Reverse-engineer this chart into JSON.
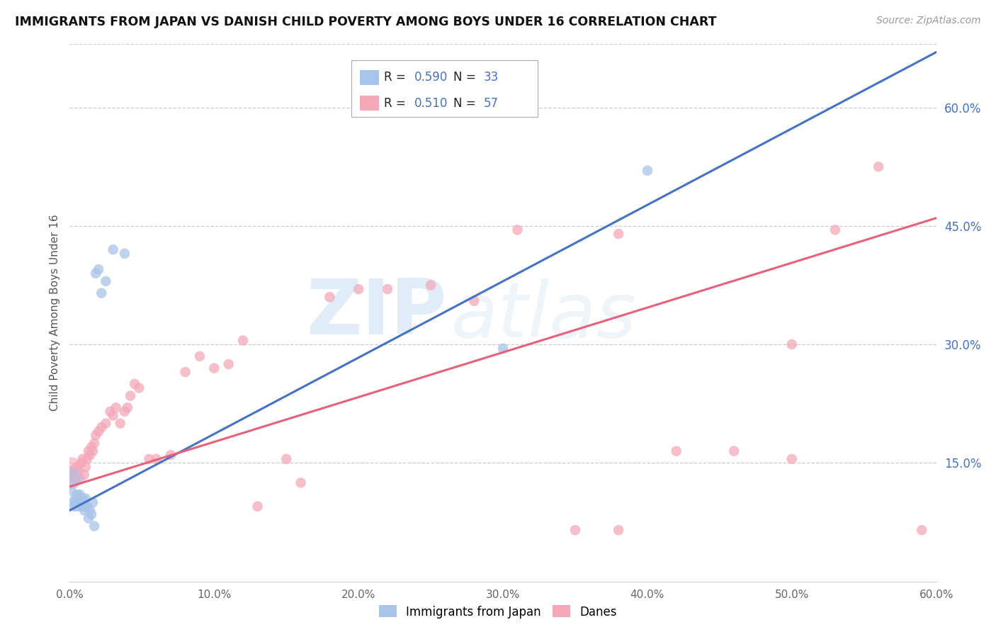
{
  "title": "IMMIGRANTS FROM JAPAN VS DANISH CHILD POVERTY AMONG BOYS UNDER 16 CORRELATION CHART",
  "source": "Source: ZipAtlas.com",
  "ylabel": "Child Poverty Among Boys Under 16",
  "xlim": [
    0.0,
    0.6
  ],
  "ylim": [
    0.0,
    0.68
  ],
  "xticks": [
    0.0,
    0.1,
    0.2,
    0.3,
    0.4,
    0.5,
    0.6
  ],
  "xticklabels": [
    "0.0%",
    "10.0%",
    "20.0%",
    "30.0%",
    "40.0%",
    "50.0%",
    "60.0%"
  ],
  "yticks_right": [
    0.15,
    0.3,
    0.45,
    0.6
  ],
  "yticklabels_right": [
    "15.0%",
    "30.0%",
    "45.0%",
    "60.0%"
  ],
  "color_japan": "#a8c4e8",
  "color_danes": "#f4a8b8",
  "color_japan_line": "#4472c4",
  "color_danes_line": "#e8607a",
  "watermark_zip": "ZIP",
  "watermark_atlas": "atlas",
  "japan_line_x0": 0.0,
  "japan_line_y0": 0.09,
  "japan_line_x1": 0.6,
  "japan_line_y1": 0.67,
  "danes_line_x0": 0.0,
  "danes_line_y0": 0.12,
  "danes_line_x1": 0.6,
  "danes_line_y1": 0.46,
  "scatter_japan_x": [
    0.001,
    0.002,
    0.003,
    0.004,
    0.004,
    0.005,
    0.005,
    0.006,
    0.006,
    0.007,
    0.007,
    0.008,
    0.008,
    0.009,
    0.009,
    0.01,
    0.01,
    0.011,
    0.011,
    0.012,
    0.013,
    0.014,
    0.015,
    0.016,
    0.017,
    0.018,
    0.02,
    0.022,
    0.025,
    0.03,
    0.038,
    0.3,
    0.4
  ],
  "scatter_japan_y": [
    0.115,
    0.1,
    0.095,
    0.1,
    0.105,
    0.11,
    0.095,
    0.105,
    0.1,
    0.11,
    0.105,
    0.095,
    0.1,
    0.105,
    0.095,
    0.1,
    0.09,
    0.105,
    0.095,
    0.095,
    0.08,
    0.09,
    0.085,
    0.1,
    0.07,
    0.39,
    0.395,
    0.365,
    0.38,
    0.42,
    0.415,
    0.295,
    0.52
  ],
  "scatter_japan_large_x": [
    0.001
  ],
  "scatter_japan_large_y": [
    0.13
  ],
  "scatter_danes_x": [
    0.001,
    0.002,
    0.003,
    0.004,
    0.005,
    0.006,
    0.007,
    0.008,
    0.009,
    0.01,
    0.011,
    0.012,
    0.013,
    0.014,
    0.015,
    0.016,
    0.017,
    0.018,
    0.02,
    0.022,
    0.025,
    0.028,
    0.03,
    0.032,
    0.035,
    0.038,
    0.04,
    0.042,
    0.045,
    0.048,
    0.055,
    0.06,
    0.07,
    0.08,
    0.09,
    0.1,
    0.11,
    0.12,
    0.13,
    0.15,
    0.16,
    0.18,
    0.2,
    0.22,
    0.25,
    0.28,
    0.31,
    0.35,
    0.38,
    0.42,
    0.46,
    0.5,
    0.53,
    0.56,
    0.59,
    0.5,
    0.38
  ],
  "scatter_danes_y": [
    0.135,
    0.14,
    0.125,
    0.13,
    0.145,
    0.14,
    0.13,
    0.15,
    0.155,
    0.135,
    0.145,
    0.155,
    0.165,
    0.16,
    0.17,
    0.165,
    0.175,
    0.185,
    0.19,
    0.195,
    0.2,
    0.215,
    0.21,
    0.22,
    0.2,
    0.215,
    0.22,
    0.235,
    0.25,
    0.245,
    0.155,
    0.155,
    0.16,
    0.265,
    0.285,
    0.27,
    0.275,
    0.305,
    0.095,
    0.155,
    0.125,
    0.36,
    0.37,
    0.37,
    0.375,
    0.355,
    0.445,
    0.065,
    0.065,
    0.165,
    0.165,
    0.3,
    0.445,
    0.525,
    0.065,
    0.155,
    0.44
  ],
  "scatter_danes_large_x": [
    0.001
  ],
  "scatter_danes_large_y": [
    0.145
  ]
}
